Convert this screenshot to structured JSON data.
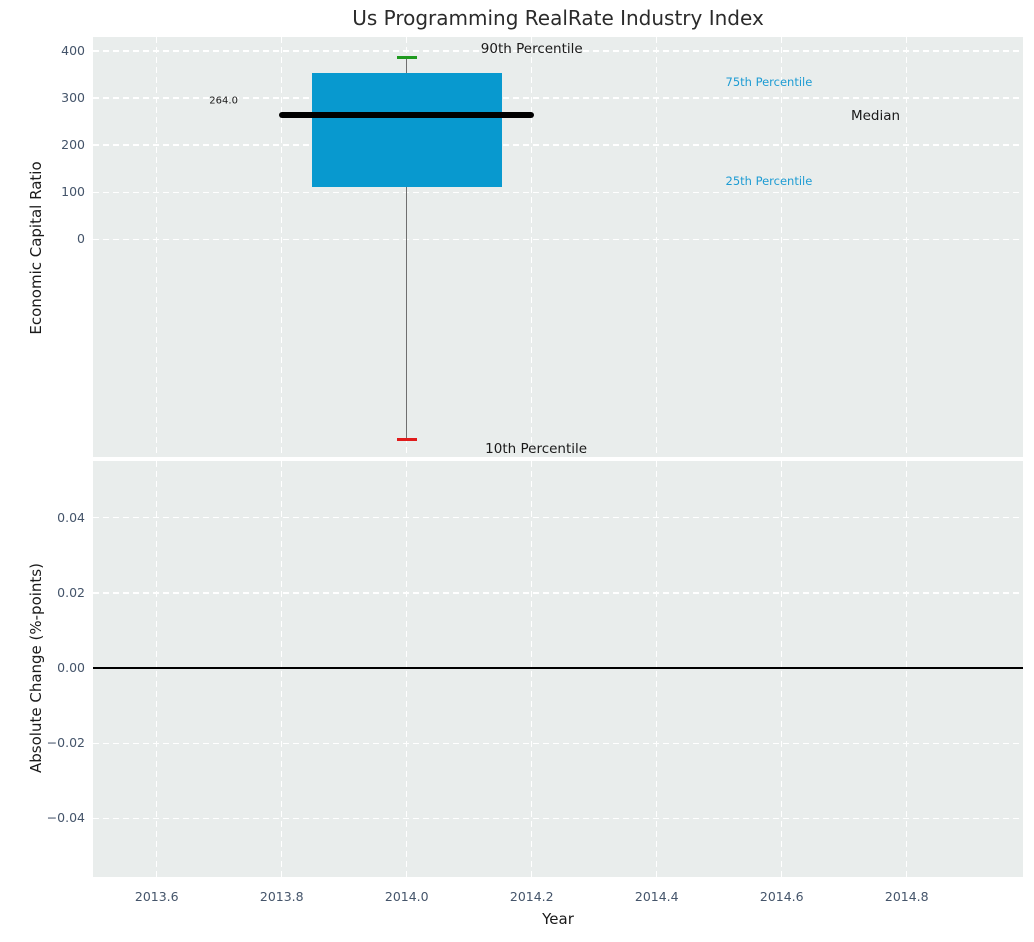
{
  "colors": {
    "axes_bg": "#e9edec",
    "grid": "#ffffff",
    "box_fill": "#0899cf",
    "median": "#000000",
    "whisker": "#6f6f6f",
    "cap_top_green": "#1f9a1f",
    "cap_bottom_red": "#e01b1b",
    "tick_label": "#44546a",
    "text": "#1a1a1a",
    "accent_blue": "#1e9cd3",
    "zero_line": "#000000"
  },
  "chart_data": [
    {
      "type": "box",
      "title": "Us Programming RealRate Industry Index",
      "ylabel": "Economic Capital Ratio",
      "xlim": [
        2013.498,
        2014.986
      ],
      "ylim": [
        -463,
        430
      ],
      "grid": "white dashed, horizontal lines only at labeled ticks",
      "y_ticks": {
        "values": [
          0,
          100,
          200,
          300,
          400
        ],
        "labels": [
          "0",
          "100",
          "200",
          "300",
          "400"
        ]
      },
      "series": [
        {
          "name": "Us Programming RealRate Industry Index",
          "x": 2014.0,
          "p10": -425,
          "p25": 111,
          "median": 264.0,
          "p75": 353,
          "p90": 386,
          "box_halfwidth": 0.152,
          "median_halfwidth": 0.204,
          "cap_halfwidth": 0.016
        }
      ],
      "annotations": [
        {
          "text": "90th Percentile",
          "x": 2014.2,
          "y": 405,
          "ha": "center",
          "color": "#1a1a1a",
          "size": 13.5
        },
        {
          "text": "264.0",
          "x": 2013.707,
          "y": 294,
          "ha": "center",
          "color": "#1a1a1a",
          "size": 10
        },
        {
          "text": "75th Percentile",
          "x": 2014.51,
          "y": 334,
          "ha": "left",
          "color": "#1e9cd3",
          "size": 11.5
        },
        {
          "text": "Median",
          "x": 2014.75,
          "y": 262,
          "ha": "center",
          "color": "#1a1a1a",
          "size": 13.5
        },
        {
          "text": "25th Percentile",
          "x": 2014.51,
          "y": 124,
          "ha": "left",
          "color": "#1e9cd3",
          "size": 11.5
        },
        {
          "text": "10th Percentile",
          "x": 2014.207,
          "y": -446,
          "ha": "center",
          "color": "#1a1a1a",
          "size": 13.5
        }
      ]
    },
    {
      "type": "line",
      "ylabel": "Absolute Change (%-points)",
      "xlabel": "Year",
      "xlim": [
        2013.498,
        2014.986
      ],
      "ylim": [
        -0.0556,
        0.0551
      ],
      "zero_line": 0.0,
      "y_ticks": {
        "values": [
          -0.04,
          -0.02,
          0.0,
          0.02,
          0.04
        ],
        "labels": [
          "−0.04",
          "−0.02",
          "0.00",
          "0.02",
          "0.04"
        ]
      },
      "x_ticks": {
        "values": [
          2013.6,
          2013.8,
          2014.0,
          2014.2,
          2014.4,
          2014.6,
          2014.8
        ],
        "labels": [
          "2013.6",
          "2013.8",
          "2014.0",
          "2014.2",
          "2014.4",
          "2014.6",
          "2014.8"
        ]
      }
    }
  ]
}
